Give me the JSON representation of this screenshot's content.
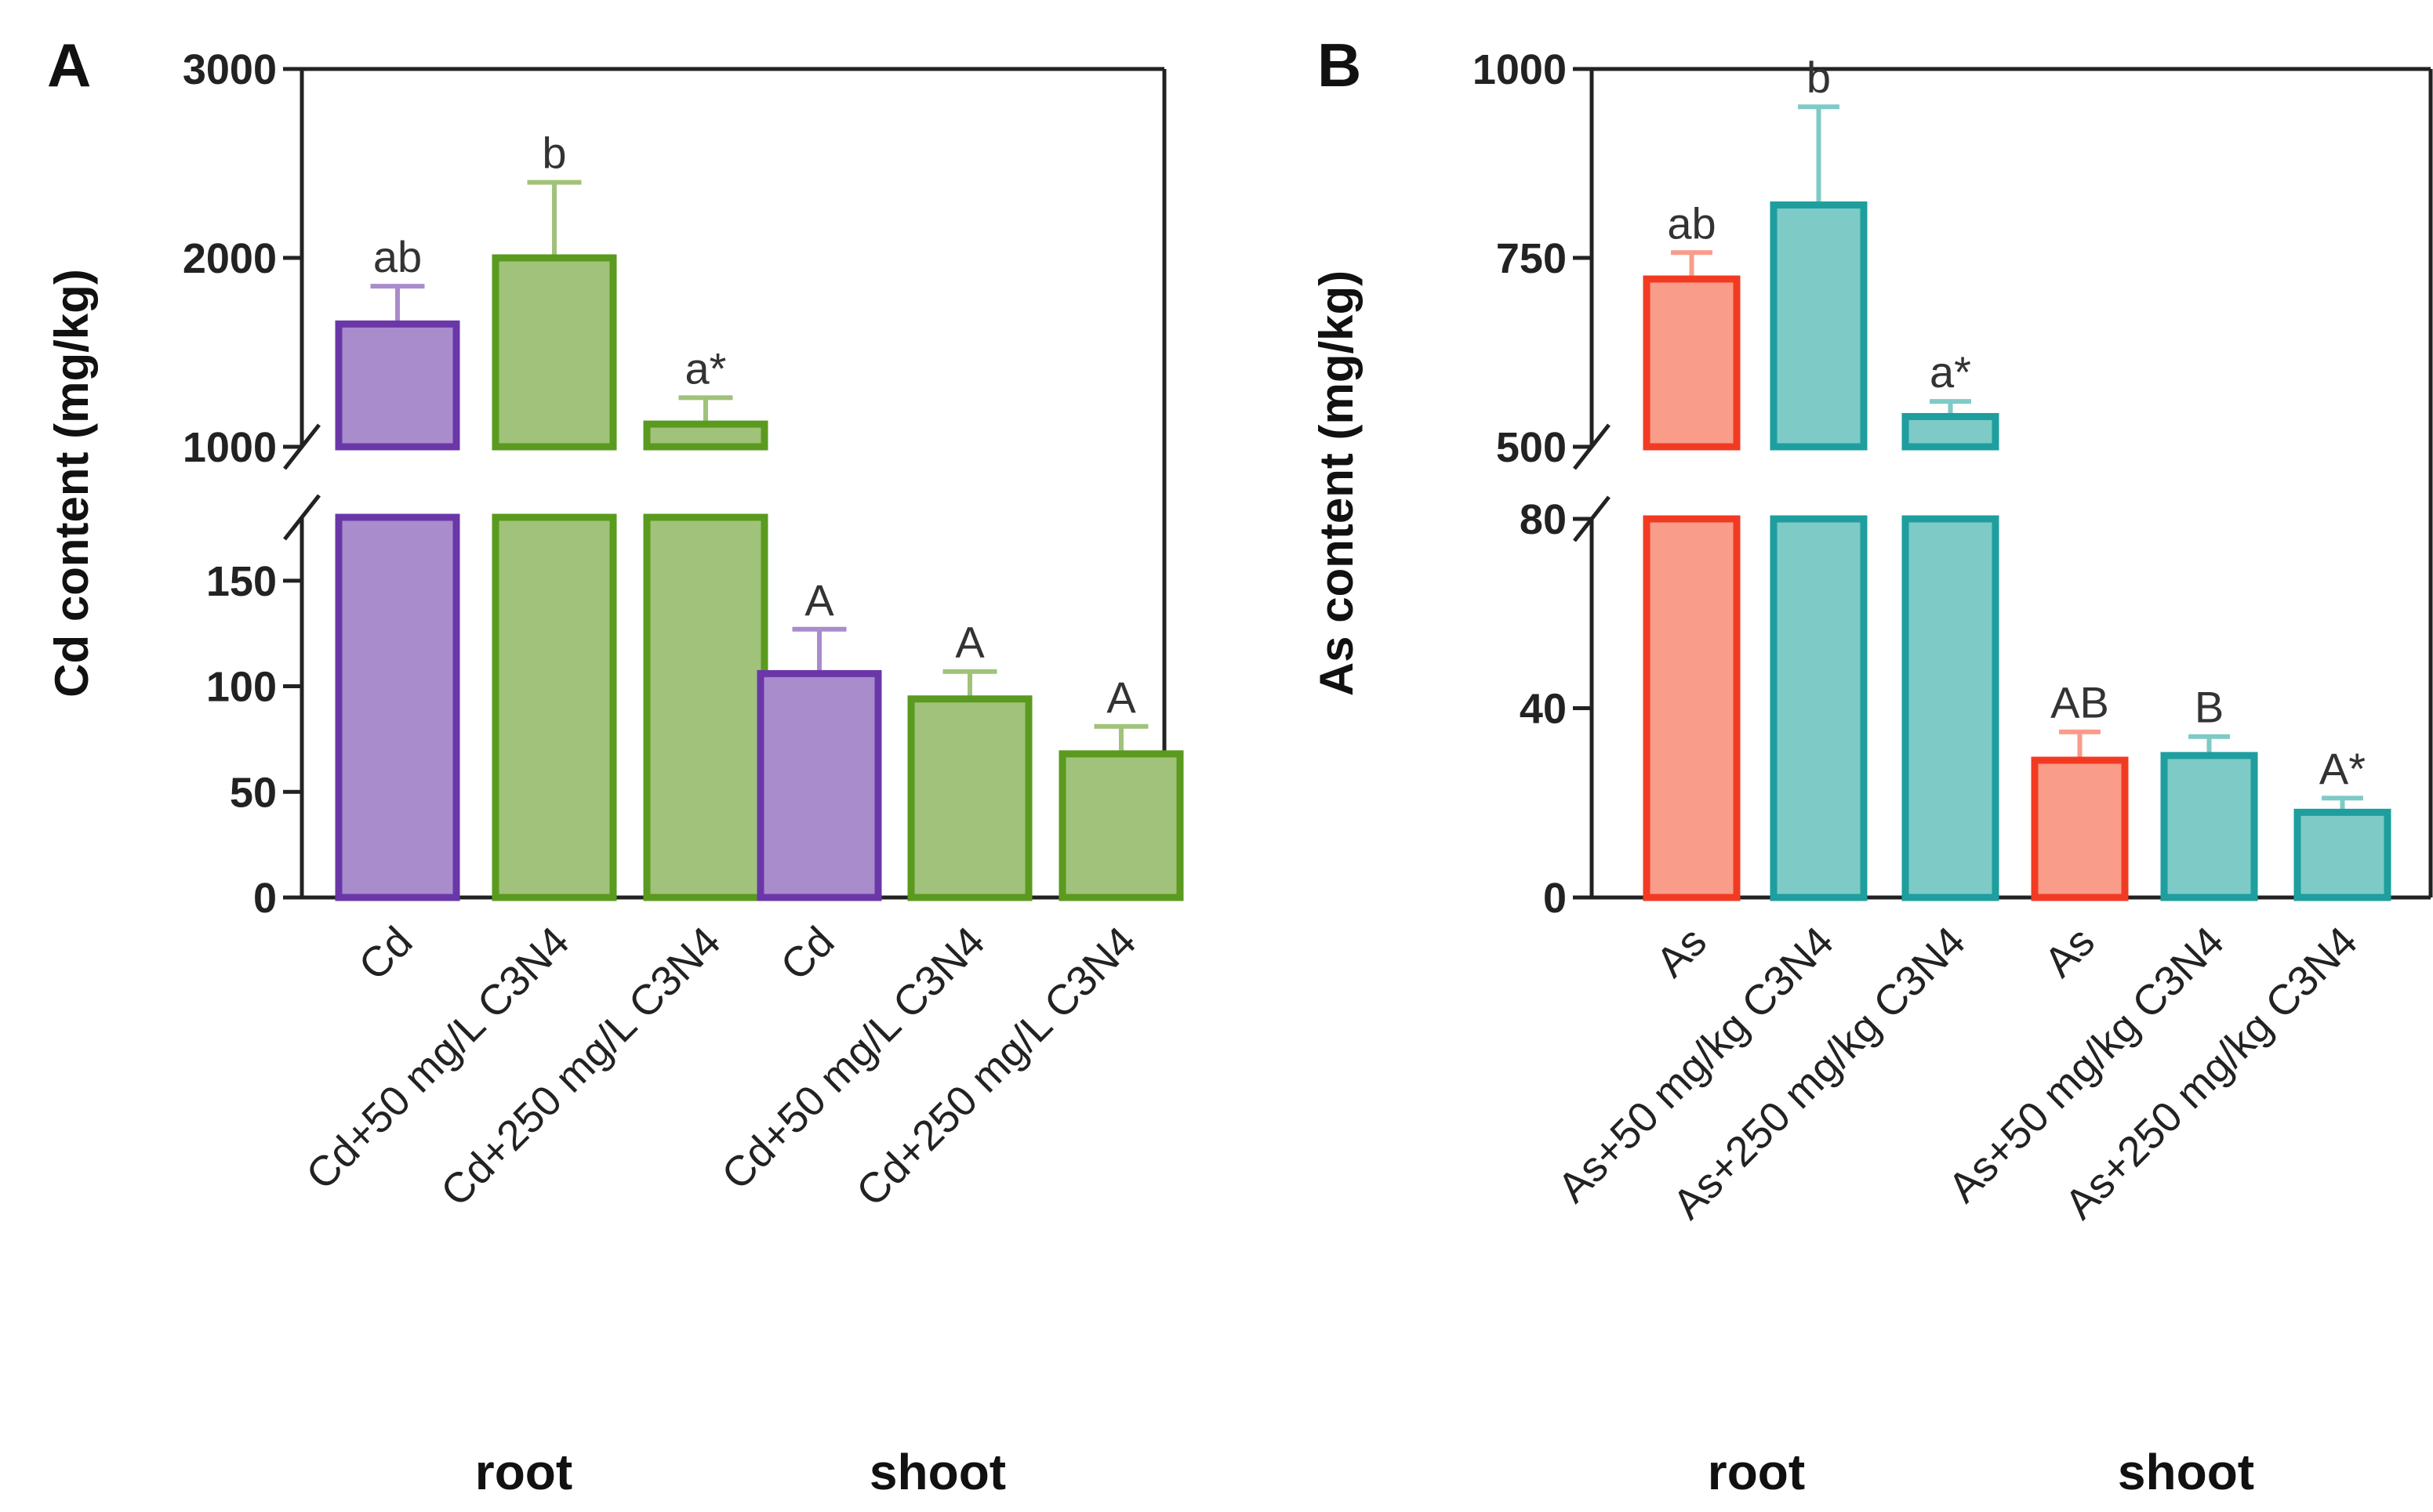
{
  "chart_data": [
    {
      "type": "bar",
      "panel": "A",
      "ylabel": "Cd content (mg/kg)",
      "axis_break": true,
      "ylim_lower": [
        0,
        180
      ],
      "ylim_upper": [
        1000,
        3000
      ],
      "yticks_lower": [
        "0",
        "50",
        "100",
        "150"
      ],
      "yticks_upper": [
        "1000",
        "2000",
        "3000"
      ],
      "categories": [
        "Cd",
        "Cd+50 mg/L C3N4",
        "Cd+250 mg/L C3N4",
        "Cd",
        "Cd+50 mg/L C3N4",
        "Cd+250 mg/L C3N4"
      ],
      "groups": [
        {
          "label": "root",
          "indices": [
            0,
            1,
            2
          ]
        },
        {
          "label": "shoot",
          "indices": [
            3,
            4,
            5
          ]
        }
      ],
      "values": [
        1650,
        2000,
        1120,
        106,
        94,
        68
      ],
      "errors": [
        200,
        400,
        140,
        21,
        13,
        13
      ],
      "significance": [
        "ab",
        "b",
        "a*",
        "A",
        "A",
        "A"
      ],
      "colors": {
        "fill": [
          "#a98ccc",
          "#a0c27a",
          "#a0c27a",
          "#a98ccc",
          "#a0c27a",
          "#a0c27a"
        ],
        "stroke": [
          "#6a37a8",
          "#5a9a1e",
          "#5a9a1e",
          "#6a37a8",
          "#5a9a1e",
          "#5a9a1e"
        ],
        "error": [
          "#a98ccc",
          "#a0c27a",
          "#a0c27a",
          "#a98ccc",
          "#a0c27a",
          "#a0c27a"
        ]
      }
    },
    {
      "type": "bar",
      "panel": "B",
      "ylabel": "As content (mg/kg)",
      "axis_break": true,
      "ylim_lower": [
        0,
        80
      ],
      "ylim_upper": [
        500,
        1000
      ],
      "yticks_lower": [
        "0",
        "40",
        "80"
      ],
      "yticks_upper": [
        "500",
        "750",
        "1000"
      ],
      "categories": [
        "As",
        "As+50 mg/kg C3N4",
        "As+250 mg/kg C3N4",
        "As",
        "As+50 mg/kg C3N4",
        "As+250 mg/kg C3N4"
      ],
      "groups": [
        {
          "label": "root",
          "indices": [
            0,
            1,
            2
          ]
        },
        {
          "label": "shoot",
          "indices": [
            3,
            4,
            5
          ]
        }
      ],
      "values": [
        722,
        820,
        540,
        29,
        30,
        18
      ],
      "errors": [
        35,
        130,
        20,
        6,
        4,
        3
      ],
      "significance": [
        "ab",
        "b",
        "a*",
        "AB",
        "B",
        "A*"
      ],
      "colors": {
        "fill": [
          "#f99c8a",
          "#7ecac7",
          "#7ecac7",
          "#f99c8a",
          "#7ecac7",
          "#7ecac7"
        ],
        "stroke": [
          "#f23a22",
          "#1e9e9e",
          "#1e9e9e",
          "#f23a22",
          "#1e9e9e",
          "#1e9e9e"
        ],
        "error": [
          "#f99c8a",
          "#7ecac7",
          "#7ecac7",
          "#f99c8a",
          "#7ecac7",
          "#7ecac7"
        ]
      }
    }
  ]
}
